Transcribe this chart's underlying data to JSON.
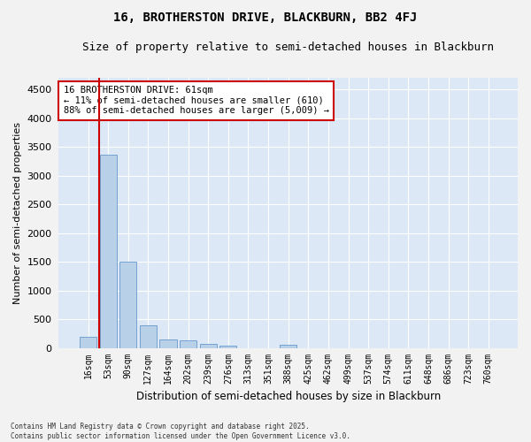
{
  "title": "16, BROTHERSTON DRIVE, BLACKBURN, BB2 4FJ",
  "subtitle": "Size of property relative to semi-detached houses in Blackburn",
  "xlabel": "Distribution of semi-detached houses by size in Blackburn",
  "ylabel": "Number of semi-detached properties",
  "categories": [
    "16sqm",
    "53sqm",
    "90sqm",
    "127sqm",
    "164sqm",
    "202sqm",
    "239sqm",
    "276sqm",
    "313sqm",
    "351sqm",
    "388sqm",
    "425sqm",
    "462sqm",
    "499sqm",
    "537sqm",
    "574sqm",
    "611sqm",
    "648sqm",
    "686sqm",
    "723sqm",
    "760sqm"
  ],
  "bar_values": [
    200,
    3370,
    1500,
    390,
    150,
    135,
    75,
    45,
    0,
    0,
    50,
    0,
    0,
    0,
    0,
    0,
    0,
    0,
    0,
    0,
    0
  ],
  "bar_color": "#b8d0e8",
  "bar_edgecolor": "#6699cc",
  "annotation_title": "16 BROTHERSTON DRIVE: 61sqm",
  "annotation_line2": "← 11% of semi-detached houses are smaller (610)",
  "annotation_line3": "88% of semi-detached houses are larger (5,009) →",
  "annotation_box_facecolor": "#ffffff",
  "annotation_box_edgecolor": "#cc0000",
  "vline_color": "#cc0000",
  "ylim": [
    0,
    4700
  ],
  "yticks": [
    0,
    500,
    1000,
    1500,
    2000,
    2500,
    3000,
    3500,
    4000,
    4500
  ],
  "background_color": "#dce8f5",
  "grid_color": "#ffffff",
  "fig_facecolor": "#f2f2f2",
  "footer_line1": "Contains HM Land Registry data © Crown copyright and database right 2025.",
  "footer_line2": "Contains public sector information licensed under the Open Government Licence v3.0."
}
